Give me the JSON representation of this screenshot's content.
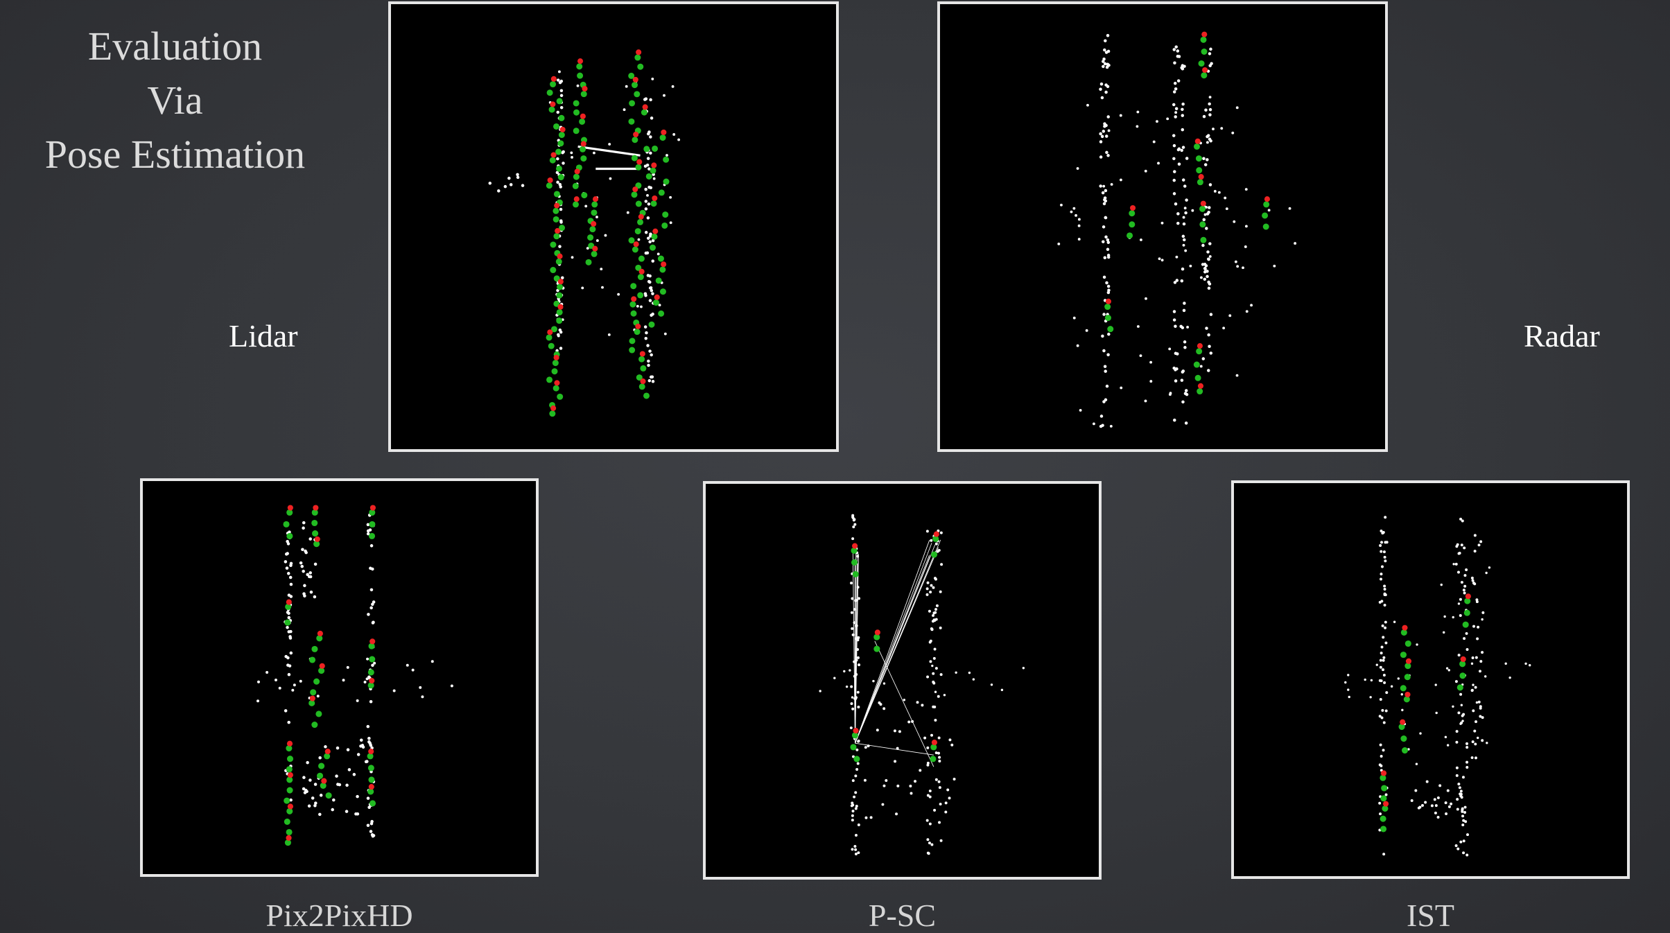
{
  "title_lines": [
    "Evaluation",
    "Via",
    "Pose Estimation"
  ],
  "labels": {
    "lidar": "Lidar",
    "radar": "Radar"
  },
  "captions": {
    "pix2pixhd": "Pix2PixHD",
    "psc": "P-SC",
    "ist": "IST"
  },
  "colors": {
    "background": "#36383c",
    "panel_fill": "#000000",
    "panel_border": "#e6e6e6",
    "points": "#ffffff",
    "pose_green": "#22bb22",
    "pose_red": "#ee2222"
  }
}
